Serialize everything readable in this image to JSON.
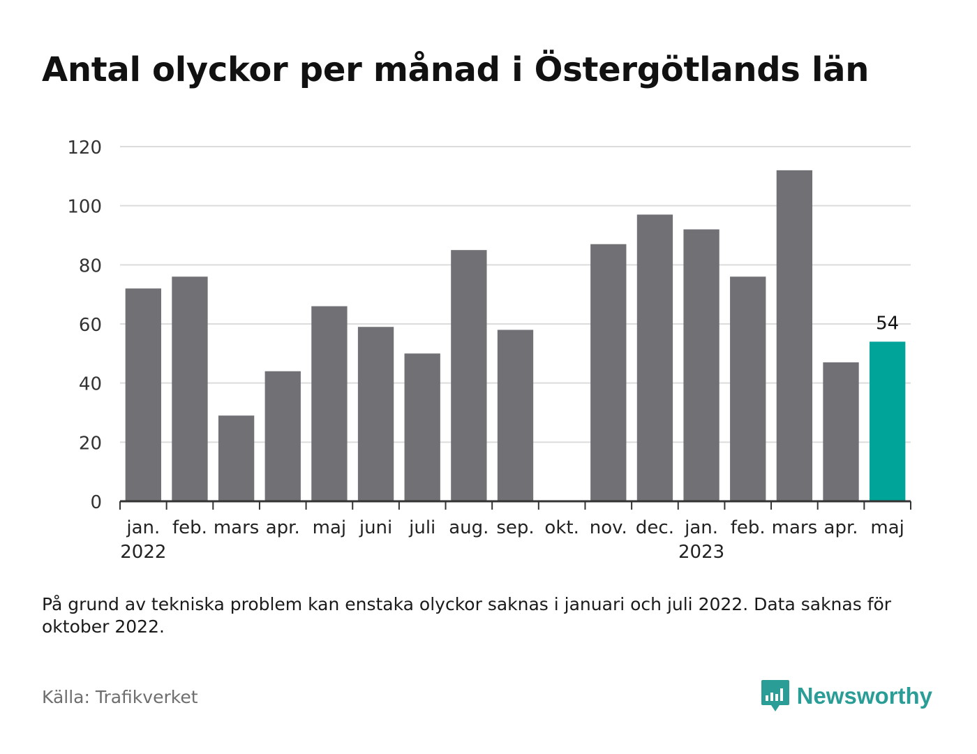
{
  "title": "Antal olyckor per månad i Östergötlands län",
  "note": "På grund av tekniska problem kan enstaka olyckor saknas i januari och juli 2022. Data saknas för oktober 2022.",
  "source": "Källa: Trafikverket",
  "brand": {
    "name": "Newsworthy",
    "icon": "newsworthy-logo-icon",
    "color": "#2a9d96"
  },
  "chart_data": {
    "type": "bar",
    "categories": [
      "jan.",
      "feb.",
      "mars",
      "apr.",
      "maj",
      "juni",
      "juli",
      "aug.",
      "sep.",
      "okt.",
      "nov.",
      "dec.",
      "jan.",
      "feb.",
      "mars",
      "apr.",
      "maj"
    ],
    "years": [
      {
        "label": "2022",
        "index": 0
      },
      {
        "label": "2023",
        "index": 12
      }
    ],
    "values": [
      72,
      76,
      29,
      44,
      66,
      59,
      50,
      85,
      58,
      null,
      87,
      97,
      92,
      76,
      112,
      47,
      54
    ],
    "highlight_index": 16,
    "highlight_label": "54",
    "ylim": [
      0,
      120
    ],
    "yticks": [
      0,
      20,
      40,
      60,
      80,
      100,
      120
    ],
    "grid": true,
    "xlabel": "",
    "ylabel": "",
    "colors": {
      "bar": "#717075",
      "highlight": "#00a499",
      "grid": "#dcdcdc",
      "axis": "#333333"
    }
  }
}
